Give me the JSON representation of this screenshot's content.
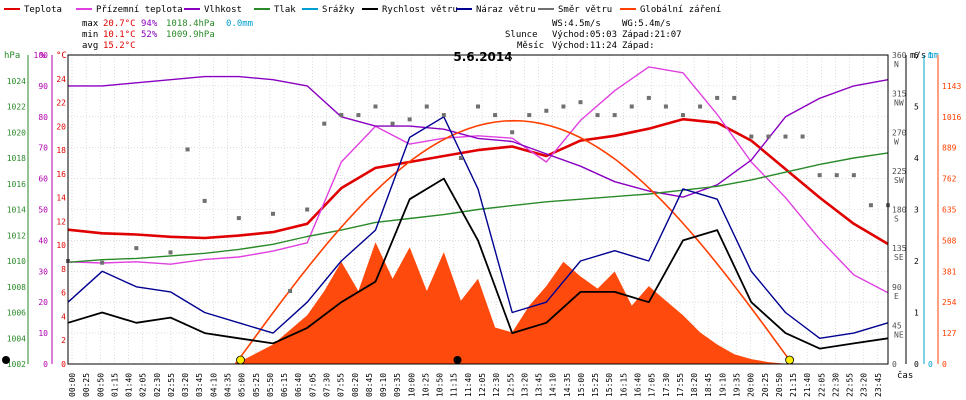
{
  "colors": {
    "teplota": "#e00000",
    "prizemni": "#e040e0",
    "vlhkost": "#8a00c0",
    "tlak": "#2a8a2a",
    "srazky": "#00a0d0",
    "rychlost": "#000000",
    "naraz": "#000090",
    "smer": "#707070",
    "zareni": "#ff4000",
    "grid": "#c8c8c8",
    "pct_axis": "#b000b0",
    "hpa_axis": "#2a8a2a",
    "temp_axis": "#e00000"
  },
  "legend": [
    {
      "key": "teplota",
      "label": "Teplota"
    },
    {
      "key": "prizemni",
      "label": "Přízemní teplota"
    },
    {
      "key": "vlhkost",
      "label": "Vlhkost"
    },
    {
      "key": "tlak",
      "label": "Tlak"
    },
    {
      "key": "srazky",
      "label": "Srážky"
    },
    {
      "key": "rychlost",
      "label": "Rychlost větru"
    },
    {
      "key": "naraz",
      "label": "Náraz větru"
    },
    {
      "key": "smer",
      "label": "Směr větru"
    },
    {
      "key": "zareni",
      "label": "Globální záření"
    }
  ],
  "stats": {
    "max_label": "max",
    "min_label": "min",
    "avg_label": "avg",
    "max_temp": "20.7°C",
    "max_hum": "94%",
    "max_press": "1018.4hPa",
    "max_rain": "0.0mm",
    "min_temp": "10.1°C",
    "min_hum": "52%",
    "min_press": "1009.9hPa",
    "avg_temp": "15.2°C"
  },
  "wind_info": {
    "ws": "WS:4.5m/s",
    "wg": "WG:5.4m/s",
    "slunce_label": "Slunce",
    "mesic_label": "Měsíc",
    "slunce_vychod": "Východ:05:03",
    "slunce_zapad": "Západ:21:07",
    "mesic_vychod": "Východ:11:24",
    "mesic_zapad": "Západ:"
  },
  "chart_data": {
    "type": "line",
    "title": "5.6.2014",
    "x_unit_label": "čas",
    "axes": {
      "hpa": {
        "unit": "hPa",
        "range": [
          1002,
          1026
        ],
        "ticks": [
          1002,
          1004,
          1006,
          1008,
          1010,
          1012,
          1014,
          1016,
          1018,
          1020,
          1022,
          1024
        ]
      },
      "pct": {
        "unit": "%",
        "range": [
          0,
          100
        ],
        "ticks": [
          0,
          10,
          20,
          30,
          40,
          50,
          60,
          70,
          80,
          90,
          100
        ]
      },
      "temp": {
        "unit": "°C",
        "range": [
          0,
          26
        ],
        "ticks": [
          0,
          2,
          4,
          6,
          8,
          10,
          12,
          14,
          16,
          18,
          20,
          22,
          24
        ]
      },
      "dir": {
        "unit": "",
        "range": [
          0,
          360
        ],
        "ticks": [
          "0",
          "45 NE",
          "90 E",
          "135 SE",
          "180 S",
          "225 SW",
          "270 W",
          "315 NW",
          "360 N"
        ]
      },
      "wind": {
        "unit": "m/s",
        "range": [
          0,
          6
        ],
        "ticks": [
          0,
          1,
          2,
          3,
          4,
          5,
          6
        ]
      },
      "rain": {
        "unit": "mm",
        "range": [
          0,
          1
        ],
        "ticks": [
          0,
          1
        ]
      },
      "rad": {
        "unit": "",
        "range": [
          0,
          1270
        ],
        "ticks": [
          0,
          127,
          254,
          381,
          508,
          635,
          762,
          889,
          1016,
          1143
        ]
      }
    },
    "x_ticks": [
      "00:00",
      "00:25",
      "00:50",
      "01:15",
      "01:40",
      "02:05",
      "02:30",
      "02:55",
      "03:20",
      "03:45",
      "04:10",
      "04:35",
      "05:00",
      "05:25",
      "05:50",
      "06:15",
      "06:40",
      "07:05",
      "07:30",
      "07:55",
      "08:20",
      "08:45",
      "09:10",
      "09:35",
      "10:00",
      "10:25",
      "10:50",
      "11:15",
      "11:40",
      "12:05",
      "12:30",
      "12:55",
      "13:20",
      "13:45",
      "14:10",
      "14:35",
      "15:00",
      "15:25",
      "15:50",
      "16:15",
      "16:40",
      "17:05",
      "17:30",
      "17:55",
      "18:20",
      "18:45",
      "19:10",
      "19:35",
      "20:00",
      "20:25",
      "20:50",
      "21:15",
      "21:40",
      "22:05",
      "22:30",
      "22:55",
      "23:20",
      "23:45"
    ],
    "series": [
      {
        "key": "teplota",
        "name": "Teplota",
        "axis": "temp",
        "x": [
          0,
          1,
          2,
          3,
          4,
          5,
          6,
          7,
          8,
          9,
          10,
          11,
          12,
          13,
          14,
          15,
          16,
          17,
          18,
          19,
          20,
          21,
          22,
          23,
          24
        ],
        "y": [
          11.3,
          11.0,
          10.9,
          10.7,
          10.6,
          10.8,
          11.1,
          11.8,
          14.8,
          16.5,
          17.0,
          17.5,
          18.0,
          18.3,
          17.5,
          18.8,
          19.2,
          19.8,
          20.6,
          20.3,
          18.8,
          16.4,
          14.0,
          11.8,
          10.1
        ]
      },
      {
        "key": "prizemni",
        "name": "Přízemní teplota",
        "axis": "temp",
        "x": [
          0,
          1,
          2,
          3,
          4,
          5,
          6,
          7,
          8,
          9,
          10,
          11,
          12,
          13,
          14,
          15,
          16,
          17,
          18,
          19,
          20,
          21,
          22,
          23,
          24
        ],
        "y": [
          8.6,
          8.5,
          8.6,
          8.4,
          8.8,
          9.0,
          9.5,
          10.2,
          17.0,
          20.0,
          18.5,
          19.0,
          19.2,
          19.0,
          17.0,
          20.5,
          23.0,
          25.0,
          24.5,
          21.0,
          17.0,
          14.0,
          10.5,
          7.5,
          6.0
        ]
      },
      {
        "key": "vlhkost",
        "name": "Vlhkost",
        "axis": "pct",
        "x": [
          0,
          1,
          2,
          3,
          4,
          5,
          6,
          7,
          8,
          9,
          10,
          11,
          12,
          13,
          14,
          15,
          16,
          17,
          18,
          19,
          20,
          21,
          22,
          23,
          24
        ],
        "y": [
          90,
          90,
          91,
          92,
          93,
          93,
          92,
          90,
          80,
          77,
          77,
          76,
          73,
          72,
          68,
          64,
          59,
          56,
          54,
          58,
          66,
          80,
          86,
          90,
          92
        ]
      },
      {
        "key": "tlak",
        "name": "Tlak",
        "axis": "hpa",
        "x": [
          0,
          1,
          2,
          3,
          4,
          5,
          6,
          7,
          8,
          9,
          10,
          11,
          12,
          13,
          14,
          15,
          16,
          17,
          18,
          19,
          20,
          21,
          22,
          23,
          24
        ],
        "y": [
          1009.9,
          1010.1,
          1010.2,
          1010.4,
          1010.6,
          1010.9,
          1011.3,
          1011.9,
          1012.4,
          1013.0,
          1013.3,
          1013.6,
          1014.0,
          1014.3,
          1014.6,
          1014.8,
          1015.0,
          1015.2,
          1015.5,
          1015.8,
          1016.3,
          1016.9,
          1017.5,
          1018.0,
          1018.4
        ]
      },
      {
        "key": "zareni",
        "name": "Globální záření",
        "axis": "rad",
        "x": [
          4.9,
          6,
          7,
          7.5,
          8,
          8.5,
          9,
          9.5,
          10,
          10.5,
          11,
          11.5,
          12,
          12.5,
          13,
          13.5,
          14,
          14.5,
          15,
          15.5,
          16,
          16.5,
          17,
          17.5,
          18,
          18.5,
          19,
          19.5,
          20,
          20.5,
          21.1
        ],
        "y": [
          0,
          80,
          200,
          300,
          420,
          300,
          500,
          350,
          480,
          300,
          460,
          260,
          350,
          150,
          130,
          240,
          320,
          420,
          360,
          310,
          380,
          240,
          320,
          260,
          200,
          130,
          80,
          40,
          20,
          8,
          0
        ]
      },
      {
        "key": "rychlost",
        "name": "Rychlost větru",
        "axis": "wind",
        "x": [
          0,
          1,
          2,
          3,
          4,
          5,
          6,
          7,
          8,
          9,
          10,
          11,
          12,
          13,
          14,
          15,
          16,
          17,
          18,
          19,
          20,
          21,
          22,
          23,
          24
        ],
        "y": [
          0.8,
          1.0,
          0.8,
          0.9,
          0.6,
          0.5,
          0.4,
          0.7,
          1.2,
          1.6,
          3.2,
          3.6,
          2.4,
          0.6,
          0.8,
          1.4,
          1.4,
          1.2,
          2.4,
          2.6,
          1.2,
          0.6,
          0.3,
          0.4,
          0.5
        ]
      },
      {
        "key": "naraz",
        "name": "Náraz větru",
        "axis": "wind",
        "x": [
          0,
          1,
          2,
          3,
          4,
          5,
          6,
          7,
          8,
          9,
          10,
          11,
          12,
          13,
          14,
          15,
          16,
          17,
          18,
          19,
          20,
          21,
          22,
          23,
          24
        ],
        "y": [
          1.2,
          1.8,
          1.5,
          1.4,
          1.0,
          0.8,
          0.6,
          1.2,
          2.0,
          2.6,
          4.4,
          4.8,
          3.4,
          1.0,
          1.2,
          2.0,
          2.2,
          2.0,
          3.4,
          3.2,
          1.8,
          1.0,
          0.5,
          0.6,
          0.8
        ]
      },
      {
        "key": "smer",
        "name": "Směr větru",
        "axis": "dir",
        "x": [
          0,
          1,
          2,
          3,
          3.5,
          4,
          5,
          6,
          6.5,
          7,
          7.5,
          8,
          8.5,
          9,
          9.5,
          10,
          10.5,
          11,
          11.5,
          12,
          12.5,
          13,
          13.5,
          14,
          14.5,
          15,
          15.5,
          16,
          16.5,
          17,
          17.5,
          18,
          18.5,
          19,
          19.5,
          20,
          20.5,
          21,
          21.5,
          22,
          22.5,
          23,
          23.5,
          24
        ],
        "y": [
          120,
          118,
          135,
          130,
          250,
          190,
          170,
          175,
          85,
          180,
          280,
          290,
          290,
          300,
          280,
          285,
          300,
          290,
          240,
          300,
          290,
          270,
          290,
          295,
          300,
          305,
          290,
          290,
          300,
          310,
          300,
          290,
          300,
          310,
          310,
          265,
          265,
          265,
          265,
          220,
          220,
          220,
          185,
          185
        ]
      }
    ],
    "markers": [
      {
        "type": "sunrise",
        "x": 5.05
      },
      {
        "type": "sunset",
        "x": 21.12
      },
      {
        "type": "moonrise",
        "x": 11.4
      }
    ]
  }
}
